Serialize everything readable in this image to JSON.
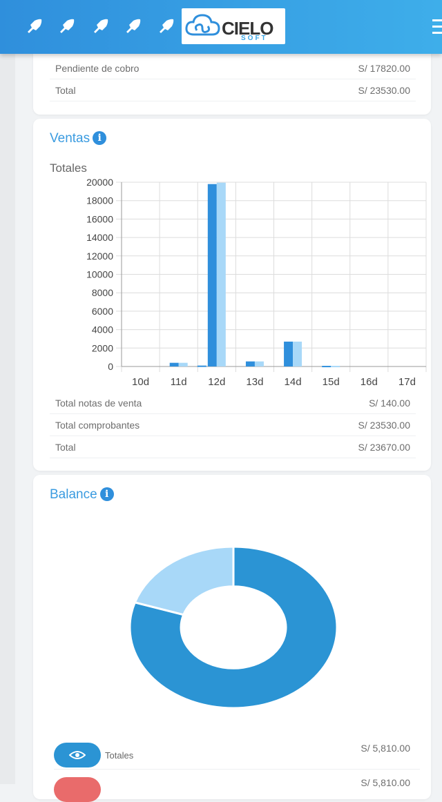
{
  "header": {
    "logo_main": "CIELO",
    "logo_sub": "SOFT"
  },
  "summary": {
    "rows": [
      {
        "label": "Pendiente de cobro",
        "value": "S/ 17820.00"
      },
      {
        "label": "Total",
        "value": "S/ 23530.00"
      }
    ]
  },
  "ventas": {
    "title": "Ventas",
    "subtitle": "Totales",
    "rows": [
      {
        "label": "Total notas de venta",
        "value": "S/ 140.00"
      },
      {
        "label": "Total comprobantes",
        "value": "S/ 23530.00"
      },
      {
        "label": "Total",
        "value": "S/ 23670.00"
      }
    ]
  },
  "chart_data": {
    "type": "bar",
    "title": "Totales",
    "categories": [
      "10d",
      "11d",
      "12d",
      "13d",
      "14d",
      "15d",
      "16d",
      "17d"
    ],
    "series": [
      {
        "color": "#2f8fdc",
        "values": [
          0,
          400,
          19800,
          550,
          2700,
          70,
          0,
          0
        ]
      },
      {
        "color": "#a8d8f8",
        "values": [
          0,
          400,
          19950,
          550,
          2700,
          70,
          0,
          0
        ]
      },
      {
        "color": "#2f8fdc",
        "values": [
          0,
          0,
          100,
          0,
          0,
          0,
          0,
          0
        ]
      }
    ],
    "y_ticks": [
      0,
      2000,
      4000,
      6000,
      8000,
      10000,
      12000,
      14000,
      16000,
      18000,
      20000
    ],
    "ylim": [
      0,
      20000
    ],
    "grid": true
  },
  "balance": {
    "title": "Balance",
    "donut": [
      {
        "value": 80,
        "color": "#2b94d4"
      },
      {
        "value": 20,
        "color": "#a8d8f8"
      }
    ],
    "legend": [
      {
        "label": "Totales",
        "value": "S/ 5,810.00",
        "color": "#2b94d4"
      },
      {
        "label": "",
        "value": "S/ 5,810.00",
        "color": "#e96b6b"
      }
    ]
  }
}
